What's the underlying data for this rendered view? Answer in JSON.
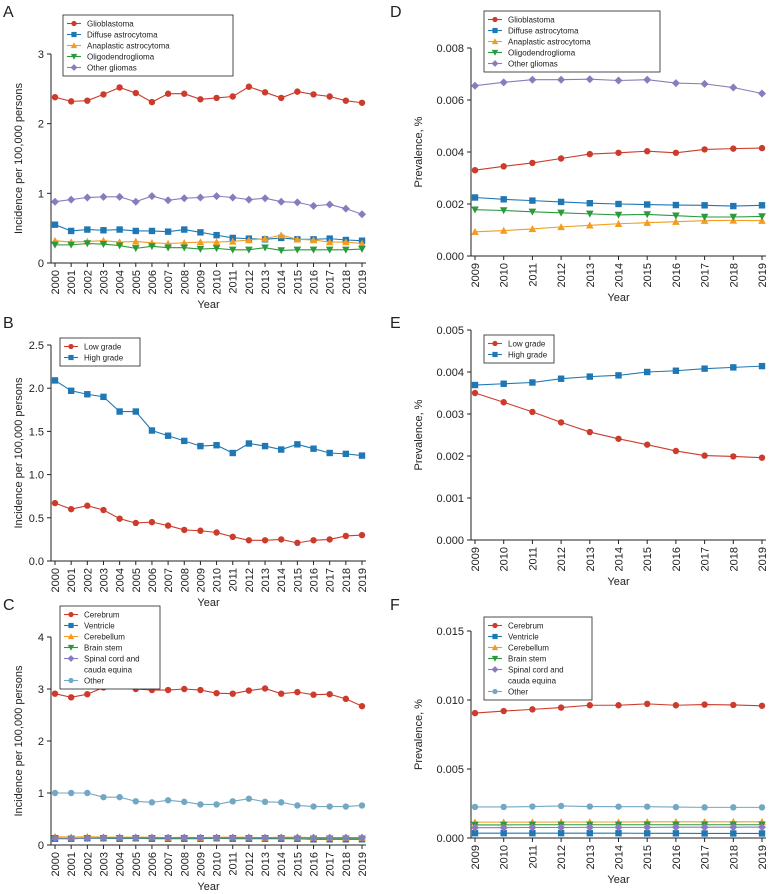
{
  "figure": {
    "panels_order": [
      "A",
      "B",
      "C",
      "D",
      "E",
      "F"
    ]
  },
  "chart_data": [
    {
      "panel": "A",
      "type": "line",
      "xlabel": "Year",
      "ylabel": "Incidence per 100,000 persons",
      "x": [
        2000,
        2001,
        2002,
        2003,
        2004,
        2005,
        2006,
        2007,
        2008,
        2009,
        2010,
        2011,
        2012,
        2013,
        2014,
        2015,
        2016,
        2017,
        2018,
        2019
      ],
      "xtick_rotate": true,
      "ylim": [
        0,
        3
      ],
      "yticks": [
        0,
        1,
        2,
        3
      ],
      "ytick_labels": [
        "0",
        "1",
        "2",
        "3"
      ],
      "legend": "top-left",
      "series": [
        {
          "name": "Glioblastoma",
          "color": "#cc3b2c",
          "marker": "circle",
          "values": [
            2.38,
            2.32,
            2.33,
            2.42,
            2.52,
            2.44,
            2.31,
            2.43,
            2.43,
            2.35,
            2.37,
            2.39,
            2.53,
            2.45,
            2.37,
            2.46,
            2.42,
            2.39,
            2.33,
            2.3
          ]
        },
        {
          "name": "Diffuse astrocytoma",
          "color": "#1f78b4",
          "marker": "square",
          "values": [
            0.55,
            0.46,
            0.48,
            0.47,
            0.48,
            0.46,
            0.46,
            0.45,
            0.48,
            0.44,
            0.4,
            0.36,
            0.35,
            0.34,
            0.36,
            0.34,
            0.34,
            0.35,
            0.33,
            0.32
          ]
        },
        {
          "name": "Anaplastic astrocytoma",
          "color": "#f39c1f",
          "marker": "triangle",
          "values": [
            0.32,
            0.3,
            0.31,
            0.32,
            0.3,
            0.31,
            0.29,
            0.28,
            0.29,
            0.3,
            0.3,
            0.31,
            0.33,
            0.35,
            0.4,
            0.34,
            0.33,
            0.3,
            0.3,
            0.28
          ]
        },
        {
          "name": "Oligodendroglioma",
          "color": "#2b9a3e",
          "marker": "triangle-down",
          "values": [
            0.26,
            0.26,
            0.28,
            0.27,
            0.25,
            0.21,
            0.24,
            0.22,
            0.22,
            0.2,
            0.21,
            0.19,
            0.19,
            0.22,
            0.18,
            0.19,
            0.19,
            0.19,
            0.19,
            0.2
          ]
        },
        {
          "name": "Other gliomas",
          "color": "#8a7bbf",
          "marker": "diamond",
          "values": [
            0.88,
            0.91,
            0.94,
            0.95,
            0.95,
            0.88,
            0.96,
            0.9,
            0.93,
            0.94,
            0.96,
            0.94,
            0.91,
            0.93,
            0.88,
            0.87,
            0.82,
            0.84,
            0.78,
            0.7
          ]
        }
      ]
    },
    {
      "panel": "B",
      "type": "line",
      "xlabel": "Year",
      "ylabel": "Incidence per 100,000 persons",
      "x": [
        2000,
        2001,
        2002,
        2003,
        2004,
        2005,
        2006,
        2007,
        2008,
        2009,
        2010,
        2011,
        2012,
        2013,
        2014,
        2015,
        2016,
        2017,
        2018,
        2019
      ],
      "xtick_rotate": true,
      "ylim": [
        0,
        2.5
      ],
      "yticks": [
        0,
        0.5,
        1,
        1.5,
        2,
        2.5
      ],
      "ytick_labels": [
        "0.0",
        "0.5",
        "1.0",
        "1.5",
        "2.0",
        "2.5"
      ],
      "legend": "top-left",
      "series": [
        {
          "name": "Low grade",
          "color": "#cc3b2c",
          "marker": "circle",
          "values": [
            0.67,
            0.6,
            0.64,
            0.59,
            0.49,
            0.44,
            0.45,
            0.41,
            0.36,
            0.35,
            0.33,
            0.28,
            0.24,
            0.24,
            0.25,
            0.21,
            0.24,
            0.25,
            0.29,
            0.3
          ]
        },
        {
          "name": "High grade",
          "color": "#1f78b4",
          "marker": "square",
          "values": [
            2.09,
            1.97,
            1.93,
            1.9,
            1.73,
            1.73,
            1.51,
            1.45,
            1.39,
            1.33,
            1.34,
            1.25,
            1.36,
            1.33,
            1.29,
            1.35,
            1.3,
            1.25,
            1.24,
            1.22
          ]
        }
      ]
    },
    {
      "panel": "C",
      "type": "line",
      "xlabel": "Year",
      "ylabel": "Incidence per 100,000 persons",
      "x": [
        2000,
        2001,
        2002,
        2003,
        2004,
        2005,
        2006,
        2007,
        2008,
        2009,
        2010,
        2011,
        2012,
        2013,
        2014,
        2015,
        2016,
        2017,
        2018,
        2019
      ],
      "xtick_rotate": true,
      "ylim": [
        0,
        4
      ],
      "yticks": [
        0,
        1,
        2,
        3,
        4
      ],
      "ytick_labels": [
        "0",
        "1",
        "2",
        "3",
        "4"
      ],
      "legend": "top-left",
      "series": [
        {
          "name": "Cerebrum",
          "color": "#cc3b2c",
          "marker": "circle",
          "values": [
            2.91,
            2.84,
            2.9,
            3.03,
            3.09,
            3.0,
            2.98,
            2.98,
            3.0,
            2.98,
            2.92,
            2.91,
            2.97,
            3.01,
            2.91,
            2.94,
            2.89,
            2.9,
            2.81,
            2.67
          ]
        },
        {
          "name": "Ventricle",
          "color": "#1f78b4",
          "marker": "square",
          "values": [
            0.12,
            0.12,
            0.13,
            0.13,
            0.12,
            0.13,
            0.12,
            0.12,
            0.12,
            0.12,
            0.13,
            0.12,
            0.12,
            0.12,
            0.12,
            0.12,
            0.11,
            0.11,
            0.11,
            0.11
          ]
        },
        {
          "name": "Cerebellum",
          "color": "#f39c1f",
          "marker": "triangle",
          "values": [
            0.16,
            0.15,
            0.16,
            0.15,
            0.15,
            0.15,
            0.15,
            0.14,
            0.15,
            0.14,
            0.15,
            0.15,
            0.15,
            0.14,
            0.15,
            0.15,
            0.14,
            0.14,
            0.14,
            0.14
          ]
        },
        {
          "name": "Brain stem",
          "color": "#2b9a3e",
          "marker": "triangle-down",
          "values": [
            0.13,
            0.12,
            0.13,
            0.13,
            0.13,
            0.13,
            0.13,
            0.13,
            0.13,
            0.13,
            0.13,
            0.13,
            0.13,
            0.13,
            0.13,
            0.12,
            0.12,
            0.12,
            0.12,
            0.12
          ]
        },
        {
          "name": "Spinal cord and cauda equina",
          "color": "#8a7bbf",
          "marker": "diamond",
          "values": [
            0.13,
            0.13,
            0.13,
            0.14,
            0.14,
            0.14,
            0.14,
            0.14,
            0.14,
            0.14,
            0.14,
            0.14,
            0.14,
            0.14,
            0.14,
            0.14,
            0.14,
            0.14,
            0.14,
            0.14
          ]
        },
        {
          "name": "Other",
          "color": "#73a8c4",
          "marker": "circle",
          "values": [
            1.0,
            1.0,
            1.0,
            0.92,
            0.92,
            0.84,
            0.82,
            0.86,
            0.83,
            0.78,
            0.78,
            0.84,
            0.89,
            0.83,
            0.82,
            0.76,
            0.74,
            0.74,
            0.74,
            0.76
          ]
        }
      ]
    },
    {
      "panel": "D",
      "type": "line",
      "xlabel": "Year",
      "ylabel": "Prevalence, %",
      "x": [
        2009,
        2010,
        2011,
        2012,
        2013,
        2014,
        2015,
        2016,
        2017,
        2018,
        2019
      ],
      "xtick_rotate": true,
      "ylim": [
        0,
        0.008
      ],
      "yticks": [
        0,
        0.002,
        0.004,
        0.006,
        0.008
      ],
      "ytick_labels": [
        "0.000",
        "0.002",
        "0.004",
        "0.006",
        "0.008"
      ],
      "legend": "top-left",
      "series": [
        {
          "name": "Glioblastoma",
          "color": "#cc3b2c",
          "marker": "circle",
          "values": [
            0.0033,
            0.00345,
            0.00358,
            0.00375,
            0.00392,
            0.00397,
            0.00403,
            0.00397,
            0.0041,
            0.00413,
            0.00415
          ]
        },
        {
          "name": "Diffuse astrocytoma",
          "color": "#1f78b4",
          "marker": "square",
          "values": [
            0.00225,
            0.00218,
            0.00213,
            0.00208,
            0.00203,
            0.002,
            0.00198,
            0.00196,
            0.00195,
            0.00192,
            0.00195
          ]
        },
        {
          "name": "Anaplastic astrocytoma",
          "color": "#f39c1f",
          "marker": "triangle",
          "values": [
            0.00093,
            0.00098,
            0.00104,
            0.00112,
            0.00118,
            0.00124,
            0.00128,
            0.00132,
            0.00136,
            0.00137,
            0.00136
          ]
        },
        {
          "name": "Oligodendroglioma",
          "color": "#2b9a3e",
          "marker": "triangle-down",
          "values": [
            0.00178,
            0.00175,
            0.0017,
            0.00166,
            0.00162,
            0.00158,
            0.0016,
            0.00155,
            0.0015,
            0.0015,
            0.00152
          ]
        },
        {
          "name": "Other gliomas",
          "color": "#8a7bbf",
          "marker": "diamond",
          "values": [
            0.00655,
            0.00668,
            0.00678,
            0.00678,
            0.0068,
            0.00675,
            0.00678,
            0.00665,
            0.00662,
            0.00648,
            0.00625
          ]
        }
      ]
    },
    {
      "panel": "E",
      "type": "line",
      "xlabel": "Year",
      "ylabel": "Prevalence, %",
      "x": [
        2009,
        2010,
        2011,
        2012,
        2013,
        2014,
        2015,
        2016,
        2017,
        2018,
        2019
      ],
      "xtick_rotate": true,
      "ylim": [
        0,
        0.005
      ],
      "yticks": [
        0,
        0.001,
        0.002,
        0.003,
        0.004,
        0.005
      ],
      "ytick_labels": [
        "0.000",
        "0.001",
        "0.002",
        "0.003",
        "0.004",
        "0.005"
      ],
      "legend": "top-left",
      "series": [
        {
          "name": "Low grade",
          "color": "#cc3b2c",
          "marker": "circle",
          "values": [
            0.0035,
            0.00328,
            0.00305,
            0.0028,
            0.00257,
            0.00241,
            0.00227,
            0.00212,
            0.00201,
            0.00199,
            0.00196
          ]
        },
        {
          "name": "High grade",
          "color": "#1f78b4",
          "marker": "square",
          "values": [
            0.00369,
            0.00372,
            0.00375,
            0.00384,
            0.00389,
            0.00392,
            0.004,
            0.00403,
            0.00408,
            0.00411,
            0.00414
          ]
        }
      ]
    },
    {
      "panel": "F",
      "type": "line",
      "xlabel": "Year",
      "ylabel": "Prevalence, %",
      "x": [
        2009,
        2010,
        2011,
        2012,
        2013,
        2014,
        2015,
        2016,
        2017,
        2018,
        2019
      ],
      "xtick_rotate": true,
      "ylim": [
        0,
        0.015
      ],
      "yticks": [
        0,
        0.005,
        0.01,
        0.015
      ],
      "ytick_labels": [
        "0.000",
        "0.005",
        "0.010",
        "0.015"
      ],
      "legend": "top-left",
      "series": [
        {
          "name": "Cerebrum",
          "color": "#cc3b2c",
          "marker": "circle",
          "values": [
            0.00905,
            0.0092,
            0.00932,
            0.00945,
            0.00962,
            0.00962,
            0.00972,
            0.00962,
            0.00967,
            0.00964,
            0.00958
          ]
        },
        {
          "name": "Ventricle",
          "color": "#1f78b4",
          "marker": "square",
          "values": [
            0.00035,
            0.00035,
            0.00035,
            0.00035,
            0.00035,
            0.00035,
            0.00034,
            0.00034,
            0.00033,
            0.00033,
            0.00033
          ]
        },
        {
          "name": "Cerebellum",
          "color": "#f39c1f",
          "marker": "triangle",
          "values": [
            0.00115,
            0.00115,
            0.00115,
            0.00116,
            0.00116,
            0.00116,
            0.00117,
            0.00117,
            0.00117,
            0.00117,
            0.00117
          ]
        },
        {
          "name": "Brain stem",
          "color": "#2b9a3e",
          "marker": "triangle-down",
          "values": [
            0.00095,
            0.00095,
            0.00096,
            0.00096,
            0.00096,
            0.00096,
            0.00096,
            0.00096,
            0.00096,
            0.00096,
            0.00096
          ]
        },
        {
          "name": "Spinal cord and cauda equina",
          "color": "#8a7bbf",
          "marker": "diamond",
          "values": [
            0.00075,
            0.00075,
            0.00076,
            0.00076,
            0.00077,
            0.00077,
            0.00077,
            0.00078,
            0.00078,
            0.00078,
            0.00079
          ]
        },
        {
          "name": "Other",
          "color": "#73a8c4",
          "marker": "circle",
          "values": [
            0.00225,
            0.00225,
            0.00228,
            0.00232,
            0.00228,
            0.00227,
            0.00227,
            0.00224,
            0.00222,
            0.00222,
            0.00222
          ]
        }
      ]
    }
  ]
}
